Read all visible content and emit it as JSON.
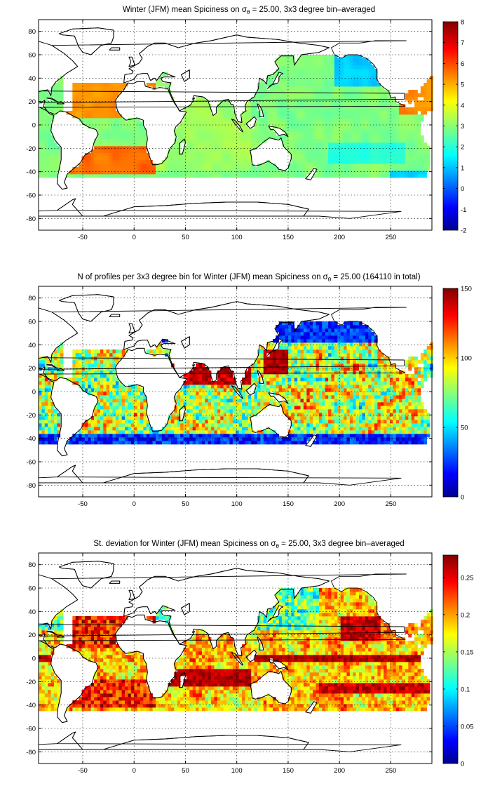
{
  "chart_data": [
    {
      "type": "heatmap",
      "title_prefix": "Winter (JFM) mean Spiciness on ",
      "title_symbol": "σ",
      "title_subscript": "θ",
      "title_suffix": " = 25.00, 3x3 degree bin–averaged",
      "x_ticks": [
        "-50",
        "0",
        "50",
        "100",
        "150",
        "200",
        "250"
      ],
      "y_ticks": [
        "80",
        "60",
        "40",
        "20",
        "0",
        "-20",
        "-40",
        "-60",
        "-80"
      ],
      "xlim": [
        -93,
        290
      ],
      "ylim": [
        -90,
        90
      ],
      "colorbar_ticks": [
        "8",
        "7",
        "6",
        "5",
        "4",
        "3",
        "2",
        "1",
        "0",
        "-1",
        "-2"
      ],
      "clim": [
        -2,
        8
      ],
      "field": "spiciness"
    },
    {
      "type": "heatmap",
      "title_prefix": "N of profiles per 3x3 degree bin for Winter (JFM) mean Spiciness on ",
      "title_symbol": "σ",
      "title_subscript": "θ",
      "title_suffix": " = 25.00 (164110 in total)",
      "x_ticks": [
        "-50",
        "0",
        "50",
        "100",
        "150",
        "200",
        "250"
      ],
      "y_ticks": [
        "80",
        "60",
        "40",
        "20",
        "0",
        "-20",
        "-40",
        "-60",
        "-80"
      ],
      "xlim": [
        -93,
        290
      ],
      "ylim": [
        -90,
        90
      ],
      "colorbar_ticks": [
        "150",
        "100",
        "50",
        "0"
      ],
      "clim": [
        0,
        150
      ],
      "field": "count"
    },
    {
      "type": "heatmap",
      "title_prefix": "St. deviation for Winter (JFM) mean Spiciness on ",
      "title_symbol": "σ",
      "title_subscript": "θ",
      "title_suffix": " = 25.00, 3x3 degree bin–averaged",
      "x_ticks": [
        "-50",
        "0",
        "50",
        "100",
        "150",
        "200",
        "250"
      ],
      "y_ticks": [
        "80",
        "60",
        "40",
        "20",
        "0",
        "-20",
        "-40",
        "-60",
        "-80"
      ],
      "xlim": [
        -93,
        290
      ],
      "ylim": [
        -90,
        90
      ],
      "colorbar_ticks": [
        "0.25",
        "0.2",
        "0.15",
        "0.1",
        "0.05",
        "0"
      ],
      "clim": [
        0,
        0.28
      ],
      "field": "stdev"
    }
  ]
}
